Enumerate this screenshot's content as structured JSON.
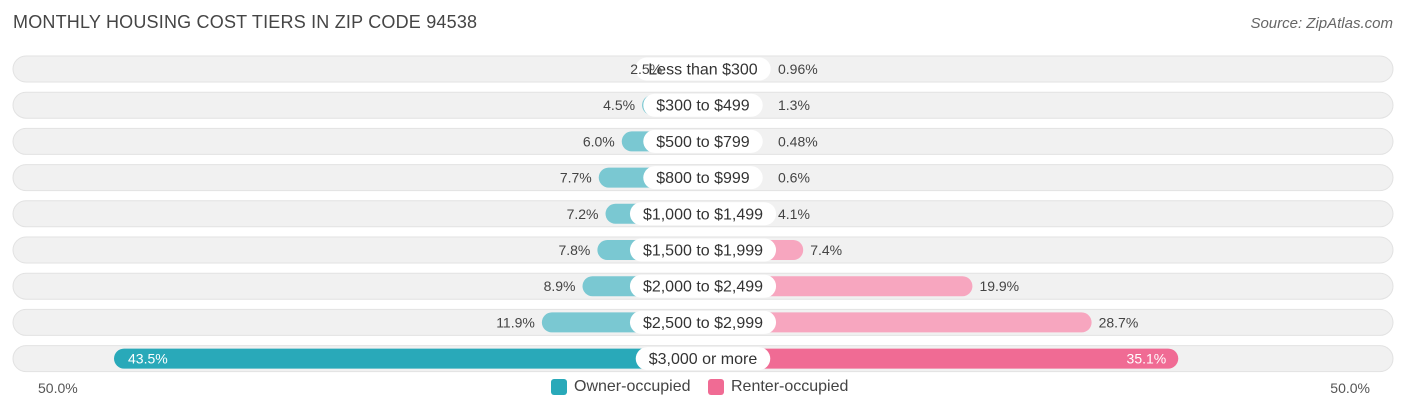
{
  "chart_data": {
    "type": "bar",
    "orientation": "diverging-horizontal",
    "title": "MONTHLY HOUSING COST TIERS IN ZIP CODE 94538",
    "source": "Source: ZipAtlas.com",
    "categories": [
      "Less than $300",
      "$300 to $499",
      "$500 to $799",
      "$800 to $999",
      "$1,000 to $1,499",
      "$1,500 to $1,999",
      "$2,000 to $2,499",
      "$2,500 to $2,999",
      "$3,000 or more"
    ],
    "series": [
      {
        "name": "Owner-occupied",
        "side": "left",
        "color": "#7ac8d2",
        "highlight_color": "#29a9b9",
        "values": [
          2.5,
          4.5,
          6.0,
          7.7,
          7.2,
          7.8,
          8.9,
          11.9,
          43.5
        ],
        "labels": [
          "2.5%",
          "4.5%",
          "6.0%",
          "7.7%",
          "7.2%",
          "7.8%",
          "8.9%",
          "11.9%",
          "43.5%"
        ]
      },
      {
        "name": "Renter-occupied",
        "side": "right",
        "color": "#f7a6bf",
        "highlight_color": "#f06b94",
        "values": [
          0.96,
          1.3,
          0.48,
          0.6,
          4.1,
          7.4,
          19.9,
          28.7,
          35.1
        ],
        "labels": [
          "0.96%",
          "1.3%",
          "0.48%",
          "0.6%",
          "4.1%",
          "7.4%",
          "19.9%",
          "28.7%",
          "35.1%"
        ]
      }
    ],
    "xlim": [
      -50,
      50
    ],
    "axis_left_label": "50.0%",
    "axis_right_label": "50.0%",
    "legend_position": "bottom-center",
    "grid": false
  }
}
